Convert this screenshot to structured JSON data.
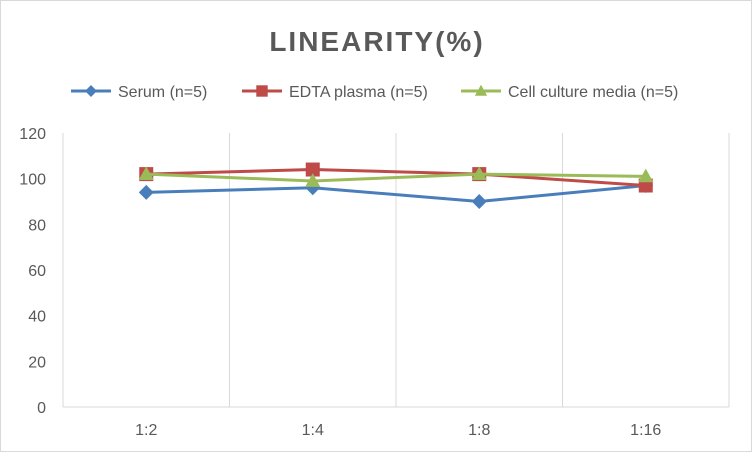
{
  "chart_data": {
    "type": "line",
    "title": "LINEARITY(%)",
    "xlabel": "",
    "ylabel": "",
    "categories": [
      "1:2",
      "1:4",
      "1:8",
      "1:16"
    ],
    "ylim": [
      0,
      120
    ],
    "yticks": [
      0,
      20,
      40,
      60,
      80,
      100,
      120
    ],
    "grid": {
      "vertical": true,
      "horizontal": false
    },
    "legend_position": "top",
    "series": [
      {
        "name": "Serum (n=5)",
        "values": [
          94,
          96,
          90,
          97
        ],
        "color": "#4a7ebb",
        "marker": "diamond"
      },
      {
        "name": "EDTA plasma (n=5)",
        "values": [
          102,
          104,
          102,
          97
        ],
        "color": "#be4b48",
        "marker": "square"
      },
      {
        "name": "Cell culture media (n=5)",
        "values": [
          102,
          99,
          102,
          101
        ],
        "color": "#9bbb59",
        "marker": "triangle"
      }
    ]
  }
}
